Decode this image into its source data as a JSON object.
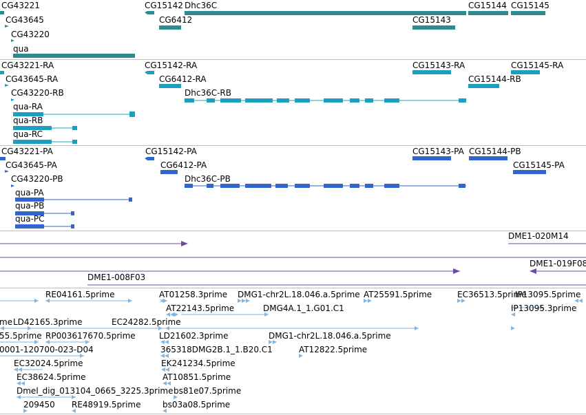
{
  "colors": {
    "genes": "#2e8b8d",
    "transcripts": "#1aa0bd",
    "proteins": "#3366cc",
    "clones": "#6a4c9c",
    "ests": "#86b6dc",
    "separator": "#bdbdbd"
  },
  "tracks": {
    "genes": {
      "labels": [
        "CG43221",
        "CG15142",
        "Dhc36C",
        "CG15144",
        "CG15145",
        "CG43645",
        "CG6412",
        "CG15143",
        "CG43220",
        "qua"
      ]
    },
    "transcripts": {
      "labels": [
        "CG43221-RA",
        "CG15142-RA",
        "CG15143-RA",
        "CG15145-RA",
        "CG43645-RA",
        "CG6412-RA",
        "CG15144-RB",
        "CG43220-RB",
        "Dhc36C-RB",
        "qua-RA",
        "qua-RB",
        "qua-RC"
      ]
    },
    "proteins": {
      "labels": [
        "CG43221-PA",
        "CG15142-PA",
        "CG15143-PA",
        "CG15144-PB",
        "CG43645-PA",
        "CG6412-PA",
        "CG15145-PA",
        "CG43220-PB",
        "Dhc36C-PB",
        "qua-PA",
        "qua-PB",
        "qua-PC"
      ]
    },
    "clones": {
      "labels": [
        "DME1-020M14",
        "DME1-019F08",
        "DME1-008F03"
      ]
    },
    "ests": {
      "labels": [
        "RE04161.5prime",
        "AT01258.3prime",
        "DMG1-chr2L.18.046.a.5prime",
        "AT25591.5prime",
        "EC36513.5prime",
        "IP13095.5prime",
        "AT22143.5prime",
        "DMG4A.1_1.G01.C1",
        "IP13095.3prime",
        "me",
        "LD42165.3prime",
        "EC24282.5prime",
        "55.5prime",
        "RP003617670.5prime",
        "LD21602.3prime",
        "DMG1-chr2L.18.046.a.5prime",
        "0001-120700-023-D04",
        "365318DMG2B.1_1.B20.C1",
        "AT12822.5prime",
        "EC32024.5prime",
        "EK241234.5prime",
        "EC38624.5prime",
        "AT10851.5prime",
        "Dmel_dig_013104_0665_3225.3prime",
        "bs81e07.5prime",
        "209450",
        "RE48919.5prime",
        "bs03a08.5prime"
      ]
    }
  }
}
